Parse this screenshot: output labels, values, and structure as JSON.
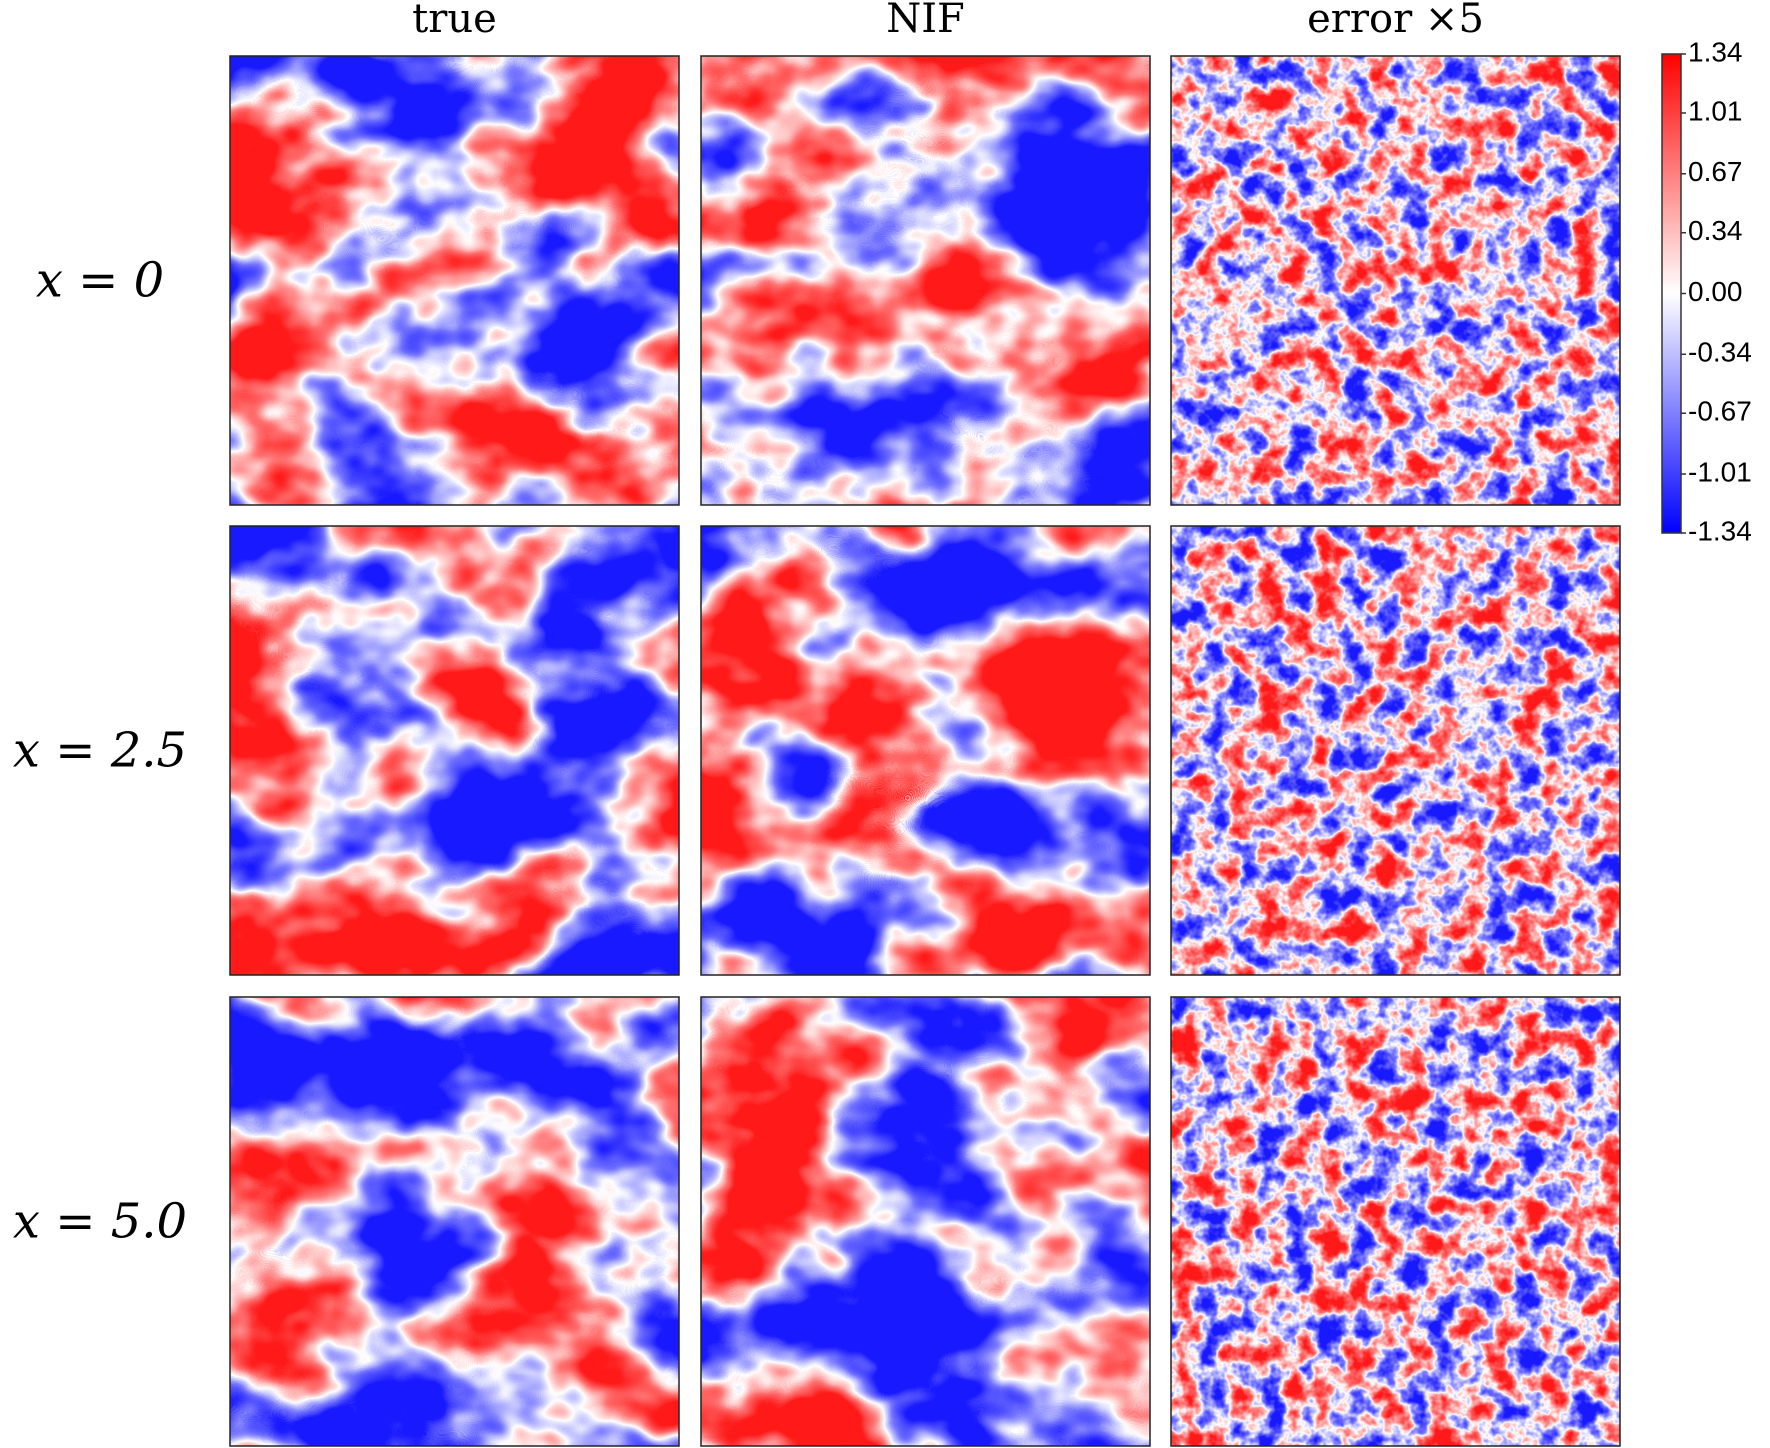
{
  "columns": [
    "true",
    "NIF",
    "error ×5"
  ],
  "rows": [
    "x = 0",
    "x = 2.5",
    "x = 5.0"
  ],
  "colorbar": {
    "lim": [
      -1.34,
      1.34
    ],
    "ticks": [
      1.34,
      1.01,
      0.67,
      0.34,
      {
        "value": 0,
        "label": "0.00"
      },
      -0.34,
      -0.67,
      -1.01,
      -1.34
    ]
  }
}
